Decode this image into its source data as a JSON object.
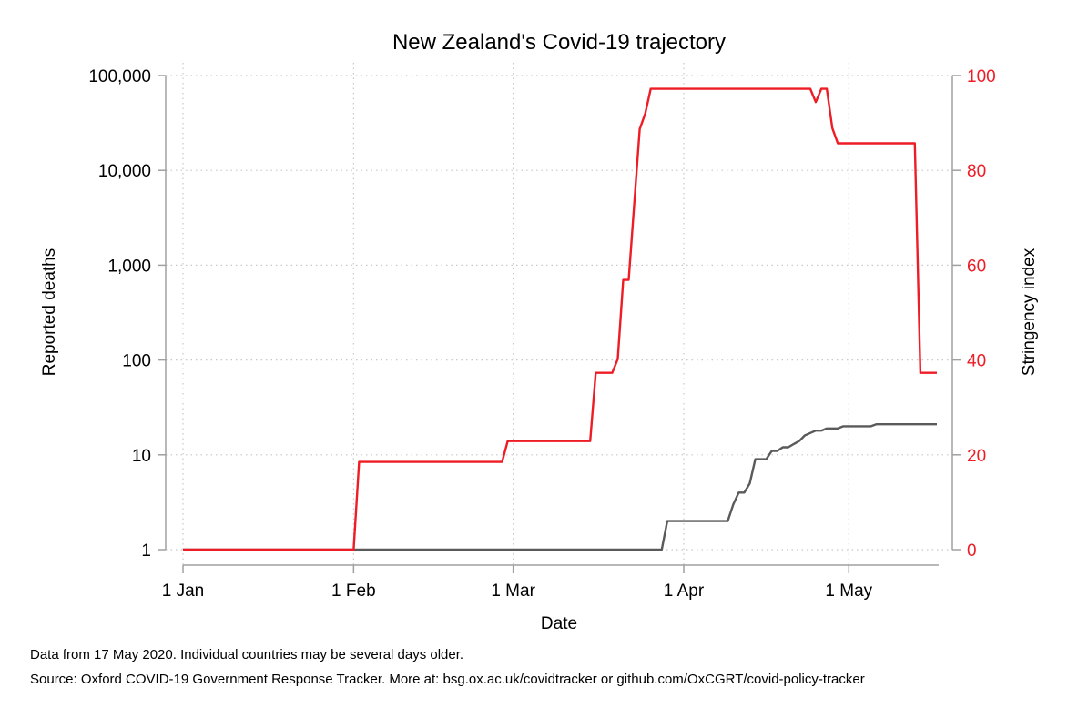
{
  "chart_data": {
    "type": "line",
    "title": "New Zealand's Covid-19 trajectory",
    "xlabel": "Date",
    "ylabel_left": "Reported deaths",
    "ylabel_right": "Stringency index",
    "x_axis": {
      "unit": "day of year 2020",
      "range": [
        "2020-01-01",
        "2020-05-17"
      ],
      "ticks": [
        {
          "date": "2020-01-01",
          "label": "1 Jan"
        },
        {
          "date": "2020-02-01",
          "label": "1 Feb"
        },
        {
          "date": "2020-03-01",
          "label": "1 Mar"
        },
        {
          "date": "2020-04-01",
          "label": "1 Apr"
        },
        {
          "date": "2020-05-01",
          "label": "1 May"
        }
      ]
    },
    "y_left": {
      "scale": "log",
      "ylim": [
        1,
        100000
      ],
      "ticks": [
        {
          "value": 1,
          "label": "1"
        },
        {
          "value": 10,
          "label": "10"
        },
        {
          "value": 100,
          "label": "100"
        },
        {
          "value": 1000,
          "label": "1,000"
        },
        {
          "value": 10000,
          "label": "10,000"
        },
        {
          "value": 100000,
          "label": "100,000"
        }
      ]
    },
    "y_right": {
      "scale": "linear",
      "ylim": [
        0,
        100
      ],
      "ticks": [
        {
          "value": 0,
          "label": "0"
        },
        {
          "value": 20,
          "label": "20"
        },
        {
          "value": 40,
          "label": "40"
        },
        {
          "value": 60,
          "label": "60"
        },
        {
          "value": 80,
          "label": "80"
        },
        {
          "value": 100,
          "label": "100"
        }
      ]
    },
    "grid": true,
    "series": [
      {
        "key": "deaths",
        "axis": "left",
        "color": "#5a5a5a",
        "points": [
          [
            "2020-01-01",
            1
          ],
          [
            "2020-03-28",
            1
          ],
          [
            "2020-03-29",
            2
          ],
          [
            "2020-04-09",
            2
          ],
          [
            "2020-04-10",
            3
          ],
          [
            "2020-04-11",
            4
          ],
          [
            "2020-04-12",
            4
          ],
          [
            "2020-04-13",
            5
          ],
          [
            "2020-04-14",
            9
          ],
          [
            "2020-04-16",
            9
          ],
          [
            "2020-04-17",
            11
          ],
          [
            "2020-04-18",
            11
          ],
          [
            "2020-04-19",
            12
          ],
          [
            "2020-04-20",
            12
          ],
          [
            "2020-04-21",
            13
          ],
          [
            "2020-04-22",
            14
          ],
          [
            "2020-04-23",
            16
          ],
          [
            "2020-04-24",
            17
          ],
          [
            "2020-04-25",
            18
          ],
          [
            "2020-04-26",
            18
          ],
          [
            "2020-04-27",
            19
          ],
          [
            "2020-04-29",
            19
          ],
          [
            "2020-04-30",
            20
          ],
          [
            "2020-05-02",
            20
          ],
          [
            "2020-05-03",
            20
          ],
          [
            "2020-05-05",
            20
          ],
          [
            "2020-05-06",
            21
          ],
          [
            "2020-05-17",
            21
          ]
        ]
      },
      {
        "key": "stringency",
        "axis": "right",
        "color": "#ee1c25",
        "points": [
          [
            "2020-01-01",
            0
          ],
          [
            "2020-02-01",
            0
          ],
          [
            "2020-02-02",
            18.5
          ],
          [
            "2020-02-28",
            18.5
          ],
          [
            "2020-02-29",
            22.9
          ],
          [
            "2020-03-15",
            22.9
          ],
          [
            "2020-03-16",
            37.3
          ],
          [
            "2020-03-19",
            37.3
          ],
          [
            "2020-03-20",
            40.2
          ],
          [
            "2020-03-21",
            56.9
          ],
          [
            "2020-03-22",
            56.9
          ],
          [
            "2020-03-24",
            88.7
          ],
          [
            "2020-03-25",
            92
          ],
          [
            "2020-03-26",
            97.2
          ],
          [
            "2020-04-24",
            97.2
          ],
          [
            "2020-04-25",
            94.4
          ],
          [
            "2020-04-26",
            97.2
          ],
          [
            "2020-04-27",
            97.2
          ],
          [
            "2020-04-28",
            88.9
          ],
          [
            "2020-04-29",
            85.7
          ],
          [
            "2020-05-13",
            85.7
          ],
          [
            "2020-05-14",
            37.3
          ],
          [
            "2020-05-17",
            37.3
          ]
        ]
      }
    ]
  },
  "footnotes": [
    "Data from 17 May 2020. Individual countries may be several days older.",
    "Source: Oxford COVID-19 Government Response Tracker. More at: bsg.ox.ac.uk/covidtracker or github.com/OxCGRT/covid-policy-tracker"
  ],
  "colors": {
    "deaths_line": "#5a5a5a",
    "stringency_line": "#ee1c25",
    "axis_gray": "#a0a0a0",
    "grid": "#c8c8c8"
  }
}
